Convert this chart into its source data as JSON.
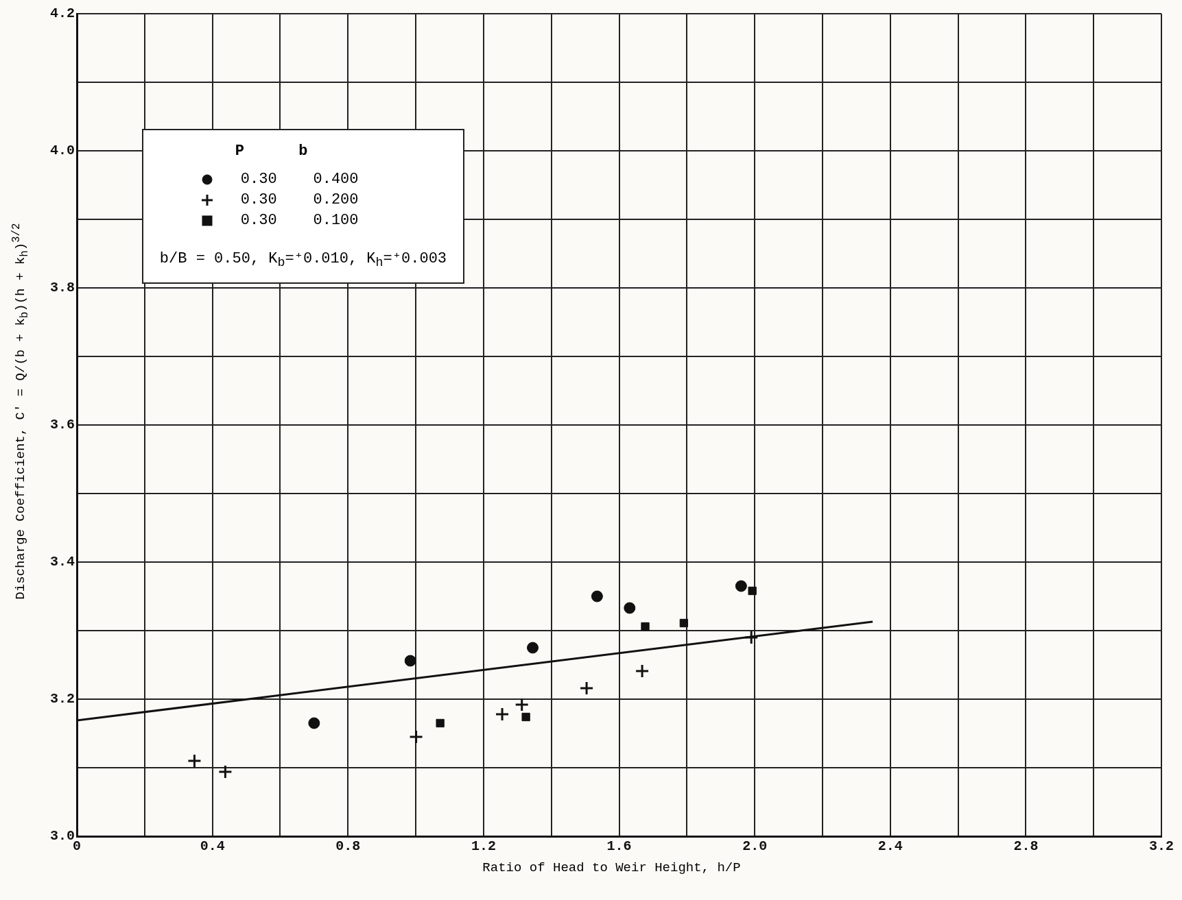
{
  "chart_data": {
    "type": "scatter",
    "xlabel": "Ratio of Head to Weir Height, h/P",
    "ylabel": "Discharge Coefficient, C' = Q/(b + k$_{b}$)(h + k$_{h}$)$^{3/2}$",
    "legend_title": "P      b",
    "legend": "top left",
    "grid": true,
    "xlim": [
      0,
      3.2
    ],
    "ylim": [
      3.0,
      4.2
    ],
    "xticks": [
      0,
      {
        "value": 0.2,
        "label": null
      },
      0.4,
      {
        "value": 0.6,
        "label": null
      },
      0.8,
      {
        "value": 1.0,
        "label": null
      },
      1.2,
      {
        "value": 1.4,
        "label": null
      },
      1.6,
      {
        "value": 1.8,
        "label": null
      },
      {
        "value": 2.0,
        "label": "2.0"
      },
      {
        "value": 2.2,
        "label": null
      },
      2.4,
      {
        "value": 2.6,
        "label": null
      },
      2.8,
      {
        "value": 3.0,
        "label": null
      },
      3.2
    ],
    "yticks": [
      {
        "value": 3.0,
        "label": "3.0"
      },
      {
        "value": 3.1,
        "label": null
      },
      3.2,
      {
        "value": 3.3,
        "label": null
      },
      3.4,
      {
        "value": 3.5,
        "label": null
      },
      3.6,
      {
        "value": 3.7,
        "label": null
      },
      3.8,
      {
        "value": 3.9,
        "label": null
      },
      {
        "value": 4.0,
        "label": "4.0"
      },
      {
        "value": 4.1,
        "label": null
      },
      4.2
    ],
    "annotations": [
      "b/B = 0.50, K$_{b}$=⁺0.010, K$_{h}$=⁺0.003"
    ],
    "series": [
      {
        "name": "0.30    0.400",
        "color": "#111111",
        "marker": "circle",
        "x": [
          0.7,
          0.984,
          1.345,
          1.535,
          1.631,
          1.96
        ],
        "values": [
          3.165,
          3.256,
          3.275,
          3.35,
          3.333,
          3.365
        ]
      },
      {
        "name": "0.30    0.200",
        "color": "#111111",
        "marker": "cross",
        "x": [
          0.347,
          0.438,
          1.001,
          1.255,
          1.313,
          1.504,
          1.668,
          1.99
        ],
        "values": [
          3.11,
          3.094,
          3.145,
          3.178,
          3.192,
          3.216,
          3.241,
          3.29
        ]
      },
      {
        "name": "0.30    0.100",
        "color": "#111111",
        "marker": "square",
        "x": [
          1.072,
          1.325,
          1.677,
          1.791,
          1.993
        ],
        "values": [
          3.165,
          3.174,
          3.306,
          3.311,
          3.358
        ]
      },
      {
        "type": "line",
        "color": "#111111",
        "marker": "none",
        "line_style": "solid",
        "x": [
          0,
          2.348
        ],
        "values": [
          3.169,
          3.313
        ]
      }
    ]
  }
}
